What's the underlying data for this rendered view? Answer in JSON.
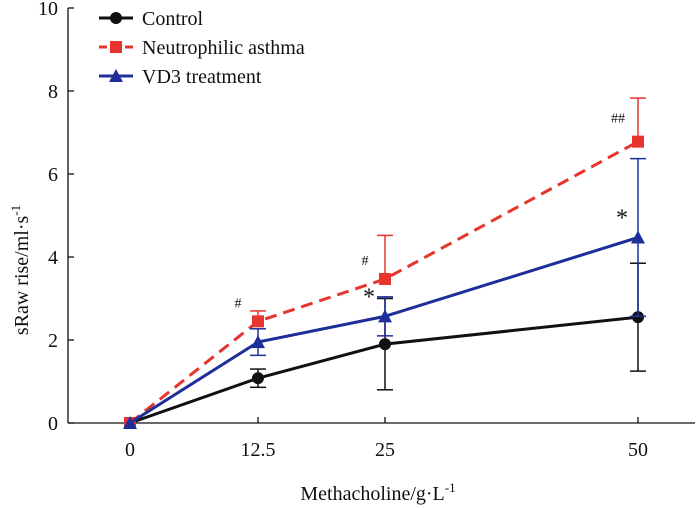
{
  "chart_data": {
    "type": "line",
    "title": "",
    "xlabel_main": "Methacholine/g·L",
    "xlabel_sup": "-1",
    "ylabel_main": "sRaw rise/ml·s",
    "ylabel_sup": "-1",
    "x": [
      0,
      12.5,
      25,
      50
    ],
    "x_tick_labels": [
      "0",
      "12.5",
      "25",
      "50"
    ],
    "ylim": [
      0,
      10
    ],
    "y_ticks": [
      0,
      2,
      4,
      6,
      8,
      10
    ],
    "y_tick_labels": [
      "0",
      "2",
      "4",
      "6",
      "8",
      "10"
    ],
    "legend_position": "top-left",
    "series": [
      {
        "name": "Control",
        "color": "#111111",
        "dash": "solid",
        "marker": "circle",
        "values": [
          0,
          1.08,
          1.9,
          2.55
        ],
        "errors": [
          0,
          0.22,
          1.1,
          1.3
        ],
        "err_dir": "both",
        "annotations": [
          "",
          "",
          "",
          ""
        ]
      },
      {
        "name": "Neutrophilic asthma",
        "color": "#e8342f",
        "dash": "dashed",
        "marker": "square",
        "values": [
          0,
          2.45,
          3.47,
          6.78
        ],
        "errors": [
          0,
          0.25,
          1.05,
          1.05
        ],
        "err_dir": "up",
        "annotations": [
          "",
          "#",
          "#",
          "##"
        ]
      },
      {
        "name": "VD3 treatment",
        "color": "#1f2f9a",
        "dash": "solid",
        "marker": "triangle",
        "values": [
          0,
          1.95,
          2.57,
          4.47
        ],
        "errors": [
          0,
          0.32,
          0.47,
          1.9
        ],
        "err_dir": "both",
        "annotations": [
          "",
          "",
          "*",
          "*"
        ]
      }
    ]
  }
}
